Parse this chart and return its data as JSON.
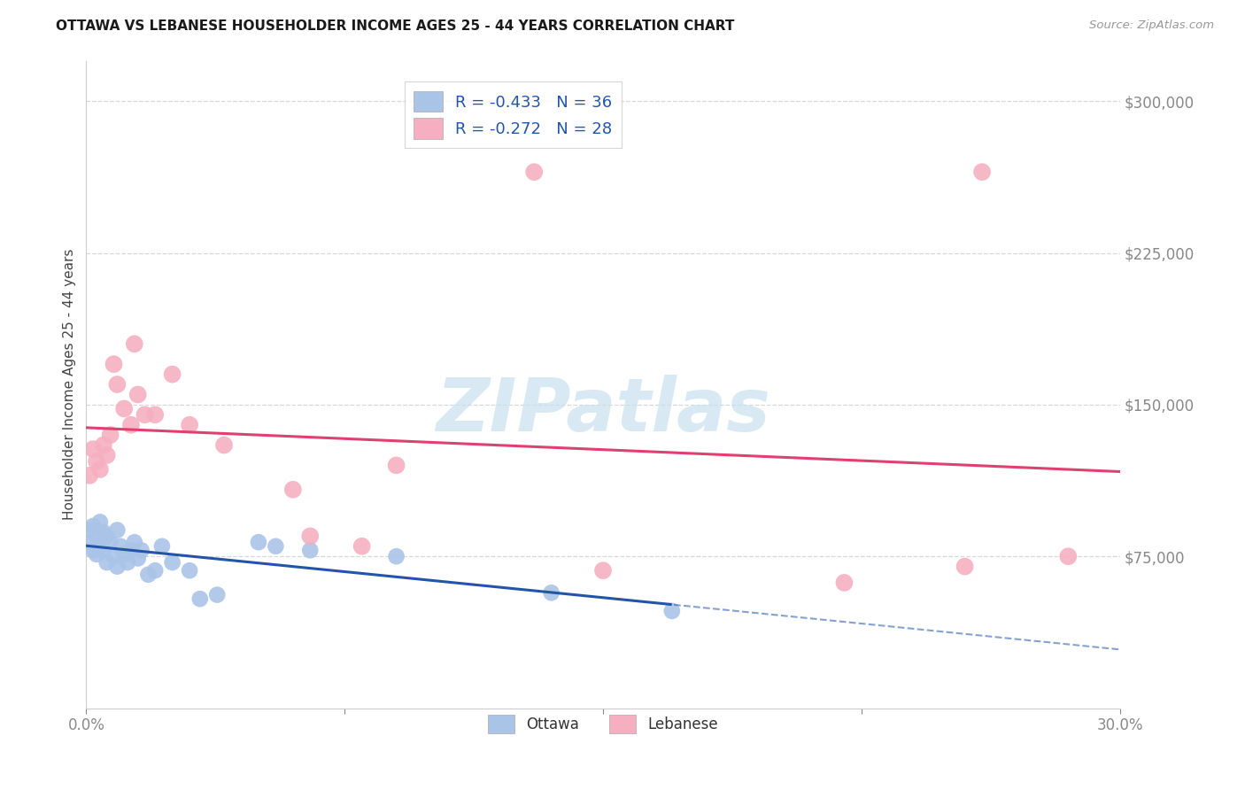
{
  "title": "OTTAWA VS LEBANESE HOUSEHOLDER INCOME AGES 25 - 44 YEARS CORRELATION CHART",
  "source": "Source: ZipAtlas.com",
  "ylabel": "Householder Income Ages 25 - 44 years",
  "xlim": [
    0.0,
    0.3
  ],
  "ylim": [
    0,
    320000
  ],
  "yticks": [
    75000,
    150000,
    225000,
    300000
  ],
  "ytick_labels": [
    "$75,000",
    "$150,000",
    "$225,000",
    "$300,000"
  ],
  "xticks": [
    0.0,
    0.075,
    0.15,
    0.225,
    0.3
  ],
  "xtick_labels": [
    "0.0%",
    "",
    "",
    "",
    "30.0%"
  ],
  "background_color": "#ffffff",
  "grid_color": "#d8d8d8",
  "ottawa_color": "#aac4e8",
  "lebanese_color": "#f5afc0",
  "ottawa_line_color": "#2255aa",
  "lebanese_line_color": "#e04070",
  "legend_label_1": "R = -0.433   N = 36",
  "legend_label_2": "R = -0.272   N = 28",
  "ottawa_x": [
    0.001,
    0.001,
    0.002,
    0.002,
    0.003,
    0.003,
    0.004,
    0.004,
    0.005,
    0.005,
    0.006,
    0.006,
    0.007,
    0.008,
    0.009,
    0.009,
    0.01,
    0.011,
    0.012,
    0.013,
    0.014,
    0.015,
    0.016,
    0.018,
    0.02,
    0.022,
    0.025,
    0.03,
    0.033,
    0.038,
    0.05,
    0.055,
    0.065,
    0.09,
    0.135,
    0.17
  ],
  "ottawa_y": [
    88000,
    82000,
    90000,
    78000,
    85000,
    76000,
    92000,
    80000,
    87000,
    78000,
    85000,
    72000,
    82000,
    75000,
    88000,
    70000,
    80000,
    76000,
    72000,
    78000,
    82000,
    74000,
    78000,
    66000,
    68000,
    80000,
    72000,
    68000,
    54000,
    56000,
    82000,
    80000,
    78000,
    75000,
    57000,
    48000
  ],
  "lebanese_x": [
    0.001,
    0.002,
    0.003,
    0.004,
    0.005,
    0.006,
    0.007,
    0.008,
    0.009,
    0.011,
    0.013,
    0.014,
    0.015,
    0.017,
    0.02,
    0.025,
    0.03,
    0.04,
    0.06,
    0.065,
    0.08,
    0.09,
    0.13,
    0.15,
    0.22,
    0.255,
    0.26,
    0.285
  ],
  "lebanese_y": [
    115000,
    128000,
    122000,
    118000,
    130000,
    125000,
    135000,
    170000,
    160000,
    148000,
    140000,
    180000,
    155000,
    145000,
    145000,
    165000,
    140000,
    130000,
    108000,
    85000,
    80000,
    120000,
    265000,
    68000,
    62000,
    70000,
    265000,
    75000
  ],
  "watermark_text": "ZIPatlas",
  "watermark_color": "#c8e0f0",
  "watermark_fontsize": 60
}
